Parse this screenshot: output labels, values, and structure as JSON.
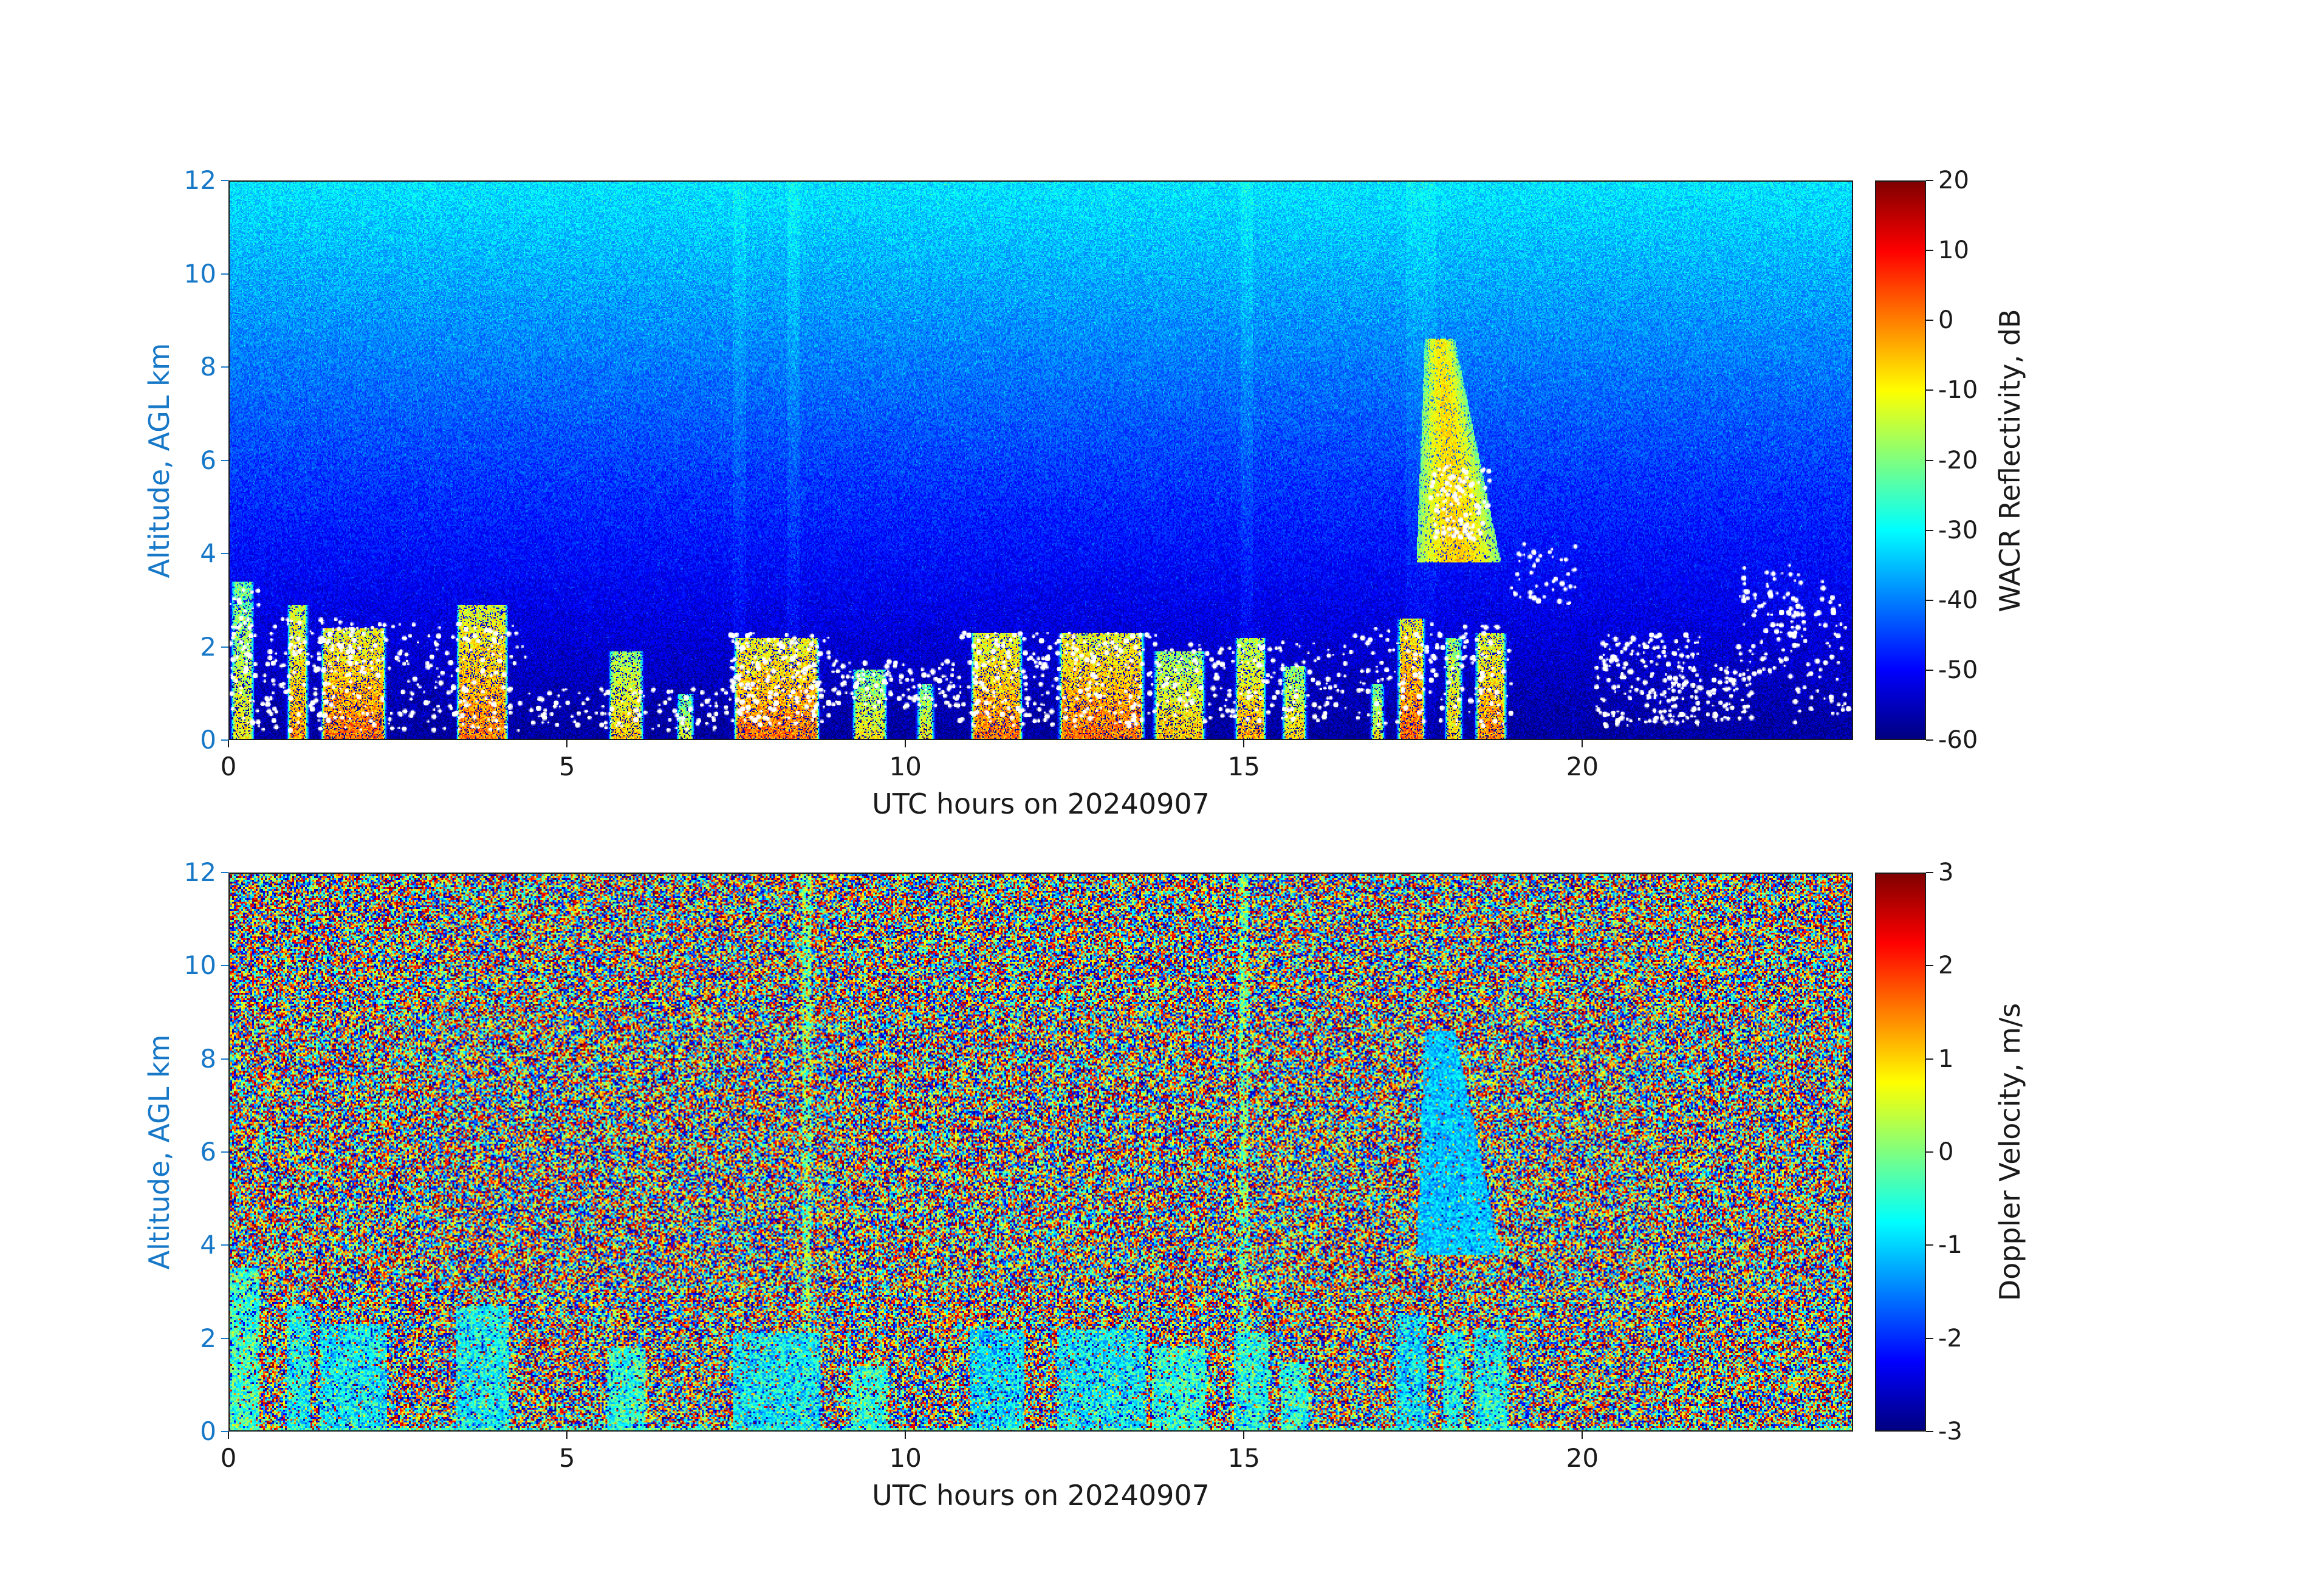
{
  "figure": {
    "background": "#ffffff",
    "axis_color": "#1a1a1a",
    "altitude_axis_color": "#1778c8",
    "white_flag_color": "#ffffff"
  },
  "chart_data": [
    {
      "type": "heatmap",
      "panel": "wacr_reflectivity",
      "title": "",
      "xlabel": "UTC hours on 20240907",
      "ylabel": "Altitude, AGL km",
      "xlim": [
        0,
        24
      ],
      "ylim": [
        0,
        12
      ],
      "xticks": [
        0,
        5,
        10,
        15,
        20
      ],
      "yticks": [
        0,
        2,
        4,
        6,
        8,
        10,
        12
      ],
      "grid": false,
      "colormap": "jet",
      "colorbar": {
        "label": "WACR Reflectivity, dB",
        "min": -60,
        "max": 20,
        "ticks": [
          20,
          10,
          0,
          -10,
          -20,
          -30,
          -40,
          -50,
          -60
        ],
        "position": "right"
      },
      "background_model": {
        "db_at_0km": -58,
        "db_at_12km": -32,
        "noise_db": 4.5,
        "bright_speckle_fraction": 0.03,
        "bright_speckle_boost_db": 5
      },
      "bright_columns": [
        {
          "t": 7.55,
          "w": 0.1,
          "amp": 2.0
        },
        {
          "t": 8.35,
          "w": 0.09,
          "amp": 2.4
        },
        {
          "t": 15.05,
          "w": 0.09,
          "amp": 2.2
        },
        {
          "t": 17.62,
          "w": 0.22,
          "amp": 1.6
        }
      ],
      "surface_cells": [
        {
          "t0": 0.02,
          "t1": 0.4,
          "top": 3.4,
          "db": -16
        },
        {
          "t0": 0.85,
          "t1": 1.2,
          "top": 2.9,
          "db": -8
        },
        {
          "t0": 1.35,
          "t1": 2.35,
          "top": 2.4,
          "db": -5
        },
        {
          "t0": 3.35,
          "t1": 4.15,
          "top": 2.9,
          "db": -6
        },
        {
          "t0": 5.6,
          "t1": 6.15,
          "top": 1.9,
          "db": -12
        },
        {
          "t0": 6.6,
          "t1": 6.9,
          "top": 1.0,
          "db": -18
        },
        {
          "t0": 7.45,
          "t1": 8.75,
          "top": 2.2,
          "db": -5
        },
        {
          "t0": 9.2,
          "t1": 9.75,
          "top": 1.5,
          "db": -15
        },
        {
          "t0": 10.15,
          "t1": 10.45,
          "top": 1.2,
          "db": -16
        },
        {
          "t0": 10.95,
          "t1": 11.75,
          "top": 2.3,
          "db": -6
        },
        {
          "t0": 12.25,
          "t1": 13.55,
          "top": 2.3,
          "db": -5
        },
        {
          "t0": 13.65,
          "t1": 14.45,
          "top": 1.9,
          "db": -12
        },
        {
          "t0": 14.85,
          "t1": 15.35,
          "top": 2.2,
          "db": -10
        },
        {
          "t0": 15.55,
          "t1": 15.95,
          "top": 1.6,
          "db": -13
        },
        {
          "t0": 16.85,
          "t1": 17.1,
          "top": 1.2,
          "db": -16
        },
        {
          "t0": 17.25,
          "t1": 17.7,
          "top": 2.6,
          "db": -4
        },
        {
          "t0": 17.95,
          "t1": 18.25,
          "top": 2.2,
          "db": -12
        },
        {
          "t0": 18.4,
          "t1": 18.9,
          "top": 2.3,
          "db": -7
        }
      ],
      "elevated_plume": {
        "t0": 17.55,
        "t1": 18.8,
        "z_base": 3.8,
        "z_top": 8.6,
        "core_db": -6
      },
      "white_dot_bands": [
        {
          "t0": 0.02,
          "t1": 0.45,
          "z0": 0.3,
          "z1": 3.3,
          "n": 60
        },
        {
          "t0": 0.5,
          "t1": 2.5,
          "z0": 0.2,
          "z1": 2.6,
          "n": 200
        },
        {
          "t0": 2.5,
          "t1": 4.4,
          "z0": 0.2,
          "z1": 2.5,
          "n": 150
        },
        {
          "t0": 4.4,
          "t1": 7.4,
          "z0": 0.2,
          "z1": 1.1,
          "n": 110
        },
        {
          "t0": 7.4,
          "t1": 8.9,
          "z0": 0.3,
          "z1": 2.3,
          "n": 200
        },
        {
          "t0": 8.9,
          "t1": 10.8,
          "z0": 0.7,
          "z1": 1.7,
          "n": 130
        },
        {
          "t0": 10.8,
          "t1": 13.7,
          "z0": 0.3,
          "z1": 2.3,
          "n": 260
        },
        {
          "t0": 13.7,
          "t1": 16.6,
          "z0": 0.4,
          "z1": 2.1,
          "n": 170
        },
        {
          "t0": 16.6,
          "t1": 18.95,
          "z0": 0.3,
          "z1": 2.5,
          "n": 160
        },
        {
          "t0": 17.75,
          "t1": 18.65,
          "z0": 4.3,
          "z1": 5.9,
          "n": 110
        },
        {
          "t0": 18.95,
          "t1": 19.9,
          "z0": 2.9,
          "z1": 4.2,
          "n": 45
        },
        {
          "t0": 20.2,
          "t1": 21.75,
          "z0": 0.3,
          "z1": 2.3,
          "n": 220
        },
        {
          "t0": 21.85,
          "t1": 22.5,
          "z0": 0.4,
          "z1": 1.6,
          "n": 60
        },
        {
          "t0": 22.3,
          "t1": 23.2,
          "z0": 1.4,
          "z1": 3.8,
          "n": 80
        },
        {
          "t0": 23.0,
          "t1": 23.95,
          "z0": 0.3,
          "z1": 3.4,
          "n": 70
        }
      ]
    },
    {
      "type": "heatmap",
      "panel": "doppler_velocity",
      "title": "",
      "xlabel": "UTC hours on 20240907",
      "ylabel": "Altitude, AGL km",
      "xlim": [
        0,
        24
      ],
      "ylim": [
        0,
        12
      ],
      "xticks": [
        0,
        5,
        10,
        15,
        20
      ],
      "yticks": [
        0,
        2,
        4,
        6,
        8,
        10,
        12
      ],
      "grid": false,
      "colormap": "jet",
      "colorbar": {
        "label": "Doppler Velocity, m/s",
        "min": -3,
        "max": 3,
        "ticks": [
          3,
          2,
          1,
          0,
          -1,
          -2,
          -3
        ],
        "position": "right"
      },
      "noise": {
        "distribution": "uniform",
        "range": [
          -3,
          3
        ]
      },
      "coherent_columns": [
        {
          "t": 8.55,
          "w": 0.07
        },
        {
          "t": 15.0,
          "w": 0.06
        }
      ],
      "surface_cells": [
        {
          "t0": 0.02,
          "t1": 0.45,
          "top": 3.5,
          "v": -0.4
        },
        {
          "t0": 0.85,
          "t1": 1.2,
          "top": 2.7,
          "v": -0.7
        },
        {
          "t0": 1.35,
          "t1": 2.35,
          "top": 2.3,
          "v": -0.8
        },
        {
          "t0": 3.35,
          "t1": 4.15,
          "top": 2.7,
          "v": -0.7
        },
        {
          "t0": 5.6,
          "t1": 6.15,
          "top": 1.8,
          "v": -0.5
        },
        {
          "t0": 7.45,
          "t1": 8.75,
          "top": 2.1,
          "v": -0.8
        },
        {
          "t0": 9.2,
          "t1": 9.75,
          "top": 1.4,
          "v": -0.5
        },
        {
          "t0": 10.95,
          "t1": 11.75,
          "top": 2.2,
          "v": -0.9
        },
        {
          "t0": 12.25,
          "t1": 13.55,
          "top": 2.2,
          "v": -0.8
        },
        {
          "t0": 13.65,
          "t1": 14.45,
          "top": 1.8,
          "v": -0.5
        },
        {
          "t0": 14.85,
          "t1": 15.35,
          "top": 2.1,
          "v": -0.6
        },
        {
          "t0": 15.55,
          "t1": 15.95,
          "top": 1.5,
          "v": -0.5
        },
        {
          "t0": 17.25,
          "t1": 17.7,
          "top": 2.5,
          "v": -0.9
        },
        {
          "t0": 17.95,
          "t1": 18.25,
          "top": 2.1,
          "v": -0.6
        },
        {
          "t0": 18.4,
          "t1": 18.9,
          "top": 2.2,
          "v": -0.7
        }
      ],
      "elevated_plume": {
        "t0": 17.55,
        "t1": 18.8,
        "z_base": 3.8,
        "z_top": 8.6,
        "v": -1.1
      },
      "surface_line": {
        "z_max": 0.08,
        "v": -0.3
      }
    }
  ]
}
